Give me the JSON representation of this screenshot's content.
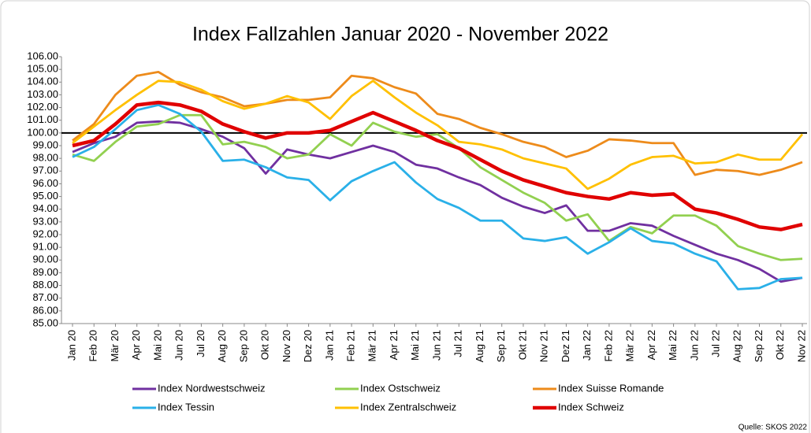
{
  "chart_data": {
    "type": "line",
    "title": "Index Fallzahlen Januar 2020 - November 2022",
    "source": "Quelle: SKOS 2022",
    "categories": [
      "Jan 20",
      "Feb 20",
      "Mär 20",
      "Apr 20",
      "Mai 20",
      "Jun 20",
      "Jul 20",
      "Aug 20",
      "Sep 20",
      "Okt 20",
      "Nov 20",
      "Dez 20",
      "Jan 21",
      "Feb 21",
      "Mär 21",
      "Apr 21",
      "Mai 21",
      "Jun 21",
      "Jul 21",
      "Aug 21",
      "Sep 21",
      "Okt 21",
      "Nov 21",
      "Dez 21",
      "Jan 22",
      "Feb 22",
      "Mär 22",
      "Apr 22",
      "Mai 22",
      "Jun 22",
      "Jul 22",
      "Aug 22",
      "Sep 22",
      "Okt 22",
      "Nov 22"
    ],
    "series": [
      {
        "name": "Index Nordwestschweiz",
        "color": "#7030a0",
        "values": [
          98.5,
          99.2,
          99.7,
          100.8,
          100.9,
          100.8,
          100.3,
          99.7,
          98.8,
          96.8,
          98.7,
          98.3,
          98.0,
          98.5,
          99.0,
          98.5,
          97.5,
          97.2,
          96.5,
          95.9,
          94.9,
          94.2,
          93.7,
          94.3,
          92.3,
          92.3,
          92.9,
          92.7,
          91.9,
          91.2,
          90.5,
          90.0,
          89.3,
          88.3,
          88.6
        ]
      },
      {
        "name": "Index Ostschweiz",
        "color": "#92d050",
        "values": [
          98.3,
          97.8,
          99.3,
          100.5,
          100.7,
          101.4,
          101.4,
          99.1,
          99.3,
          98.9,
          98.0,
          98.3,
          99.9,
          99.0,
          100.8,
          100.1,
          99.7,
          99.9,
          98.8,
          97.3,
          96.3,
          95.3,
          94.5,
          93.1,
          93.6,
          91.5,
          92.6,
          92.1,
          93.5,
          93.5,
          92.7,
          91.1,
          90.5,
          90.0,
          90.1
        ]
      },
      {
        "name": "Index Suisse Romande",
        "color": "#ed8b1b",
        "values": [
          99.4,
          100.7,
          103.0,
          104.5,
          104.8,
          103.8,
          103.2,
          102.8,
          102.1,
          102.3,
          102.6,
          102.6,
          102.8,
          104.5,
          104.3,
          103.6,
          103.1,
          101.5,
          101.1,
          100.4,
          99.9,
          99.3,
          98.9,
          98.1,
          98.6,
          99.5,
          99.4,
          99.2,
          99.2,
          96.7,
          97.1,
          97.0,
          96.7,
          97.1,
          97.7
        ]
      },
      {
        "name": "Index Tessin",
        "color": "#2ab0e8",
        "values": [
          98.1,
          98.9,
          100.3,
          101.8,
          102.2,
          101.5,
          100.1,
          97.8,
          97.9,
          97.3,
          96.5,
          96.3,
          94.7,
          96.2,
          97.0,
          97.7,
          96.1,
          94.8,
          94.1,
          93.1,
          93.1,
          91.7,
          91.5,
          91.8,
          90.5,
          91.4,
          92.5,
          91.5,
          91.3,
          90.5,
          89.9,
          87.7,
          87.8,
          88.5,
          88.6
        ]
      },
      {
        "name": "Index Zentralschweiz",
        "color": "#ffc000",
        "values": [
          99.2,
          100.5,
          101.8,
          103.0,
          104.1,
          104.0,
          103.4,
          102.5,
          101.9,
          102.3,
          102.9,
          102.4,
          101.1,
          102.9,
          104.1,
          102.8,
          101.6,
          100.6,
          99.3,
          99.1,
          98.7,
          98.0,
          97.6,
          97.2,
          95.6,
          96.4,
          97.5,
          98.1,
          98.2,
          97.6,
          97.7,
          98.3,
          97.9,
          97.9,
          99.9
        ]
      },
      {
        "name": "Index Schweiz",
        "color": "#e00000",
        "values": [
          99.0,
          99.4,
          100.7,
          102.2,
          102.4,
          102.2,
          101.7,
          100.7,
          100.1,
          99.6,
          100.0,
          100.0,
          100.2,
          100.9,
          101.6,
          100.9,
          100.2,
          99.4,
          98.8,
          97.9,
          97.0,
          96.3,
          95.8,
          95.3,
          95.0,
          94.8,
          95.3,
          95.1,
          95.2,
          94.0,
          93.7,
          93.2,
          92.6,
          92.4,
          92.8
        ]
      }
    ],
    "reference_line": 100,
    "ylim": [
      85,
      106
    ],
    "yticks": [
      {
        "value": 85,
        "label": "85.00"
      },
      {
        "value": 86,
        "label": "86.00"
      },
      {
        "value": 87,
        "label": "87.00"
      },
      {
        "value": 88,
        "label": "88.00"
      },
      {
        "value": 89,
        "label": "89.00"
      },
      {
        "value": 90,
        "label": "90.00"
      },
      {
        "value": 91,
        "label": "91.00"
      },
      {
        "value": 92,
        "label": "92.00"
      },
      {
        "value": 93,
        "label": "93.00"
      },
      {
        "value": 94,
        "label": "94.00"
      },
      {
        "value": 95,
        "label": "95.00"
      },
      {
        "value": 96,
        "label": "96.00"
      },
      {
        "value": 97,
        "label": "97.00"
      },
      {
        "value": 98,
        "label": "98.00"
      },
      {
        "value": 99,
        "label": "99.00"
      },
      {
        "value": 100,
        "label": "100.00"
      },
      {
        "value": 101,
        "label": "101.00"
      },
      {
        "value": 102,
        "label": "102.00"
      },
      {
        "value": 103,
        "label": "103.00"
      },
      {
        "value": 104,
        "label": "104.00"
      },
      {
        "value": 105,
        "label": "105.00"
      },
      {
        "value": 106,
        "label": "106.00"
      }
    ]
  }
}
